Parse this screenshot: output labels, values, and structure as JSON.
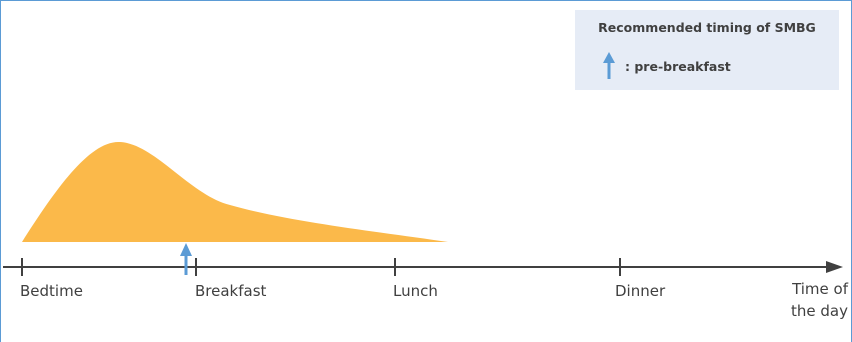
{
  "legend": {
    "title": "Recommended timing of SMBG",
    "marker_label": ": pre-breakfast",
    "marker_icon": "up-arrow-icon"
  },
  "axis": {
    "ticks": [
      "Bedtime",
      "Breakfast",
      "Lunch",
      "Dinner"
    ],
    "title_line1": "Time of",
    "title_line2": "the day"
  },
  "colors": {
    "curve_fill": "#fbb94a",
    "arrow": "#5b9bd5",
    "axis": "#404040",
    "legend_bg": "#e6ecf6",
    "border": "#5b9bd5"
  }
}
